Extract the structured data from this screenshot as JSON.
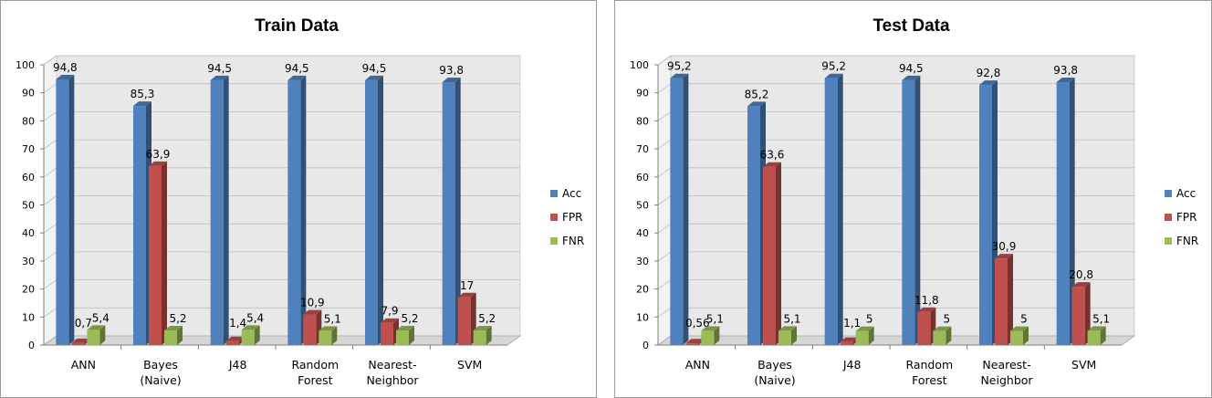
{
  "chart_data": [
    {
      "type": "bar",
      "title": "Train Data",
      "categories": [
        [
          "ANN"
        ],
        [
          "Bayes",
          "(Naive)"
        ],
        [
          "J48"
        ],
        [
          "Random",
          "Forest"
        ],
        [
          "Nearest-",
          "Neighbor"
        ],
        [
          "SVM"
        ]
      ],
      "ylim": [
        0,
        100
      ],
      "yticks": [
        "0",
        "10",
        "20",
        "30",
        "40",
        "50",
        "60",
        "70",
        "80",
        "90",
        "100"
      ],
      "legend_position": "right",
      "series": [
        {
          "name": "Acc",
          "color": "#4f81bd",
          "values": [
            94.8,
            85.3,
            94.5,
            94.5,
            94.5,
            93.8
          ],
          "labels": [
            "94,8",
            "85,3",
            "94,5",
            "94,5",
            "94,5",
            "93,8"
          ]
        },
        {
          "name": "FPR",
          "color": "#c0504d",
          "values": [
            0.7,
            63.9,
            1.4,
            10.9,
            7.9,
            17
          ],
          "labels": [
            "0,7",
            "63,9",
            "1,4",
            "10,9",
            "7,9",
            "17"
          ]
        },
        {
          "name": "FNR",
          "color": "#9bbb59",
          "values": [
            5.4,
            5.2,
            5.4,
            5.1,
            5.2,
            5.2
          ],
          "labels": [
            "5,4",
            "5,2",
            "5,4",
            "5,1",
            "5,2",
            "5,2"
          ]
        }
      ]
    },
    {
      "type": "bar",
      "title": "Test Data",
      "categories": [
        [
          "ANN"
        ],
        [
          "Bayes",
          "(Naive)"
        ],
        [
          "J48"
        ],
        [
          "Random",
          "Forest"
        ],
        [
          "Nearest-",
          "Neighbor"
        ],
        [
          "SVM"
        ]
      ],
      "ylim": [
        0,
        100
      ],
      "yticks": [
        "0",
        "10",
        "20",
        "30",
        "40",
        "50",
        "60",
        "70",
        "80",
        "90",
        "100"
      ],
      "legend_position": "right",
      "series": [
        {
          "name": "Acc",
          "color": "#4f81bd",
          "values": [
            95.2,
            85.2,
            95.2,
            94.5,
            92.8,
            93.8
          ],
          "labels": [
            "95,2",
            "85,2",
            "95,2",
            "94,5",
            "92,8",
            "93,8"
          ]
        },
        {
          "name": "FPR",
          "color": "#c0504d",
          "values": [
            0.56,
            63.6,
            1.1,
            11.8,
            30.9,
            20.8
          ],
          "labels": [
            "0,56",
            "63,6",
            "1,1",
            "11,8",
            "30,9",
            "20,8"
          ]
        },
        {
          "name": "FNR",
          "color": "#9bbb59",
          "values": [
            5.1,
            5.1,
            5,
            5,
            5,
            5.1
          ],
          "labels": [
            "5,1",
            "5,1",
            "5",
            "5",
            "5",
            "5,1"
          ]
        }
      ]
    }
  ]
}
